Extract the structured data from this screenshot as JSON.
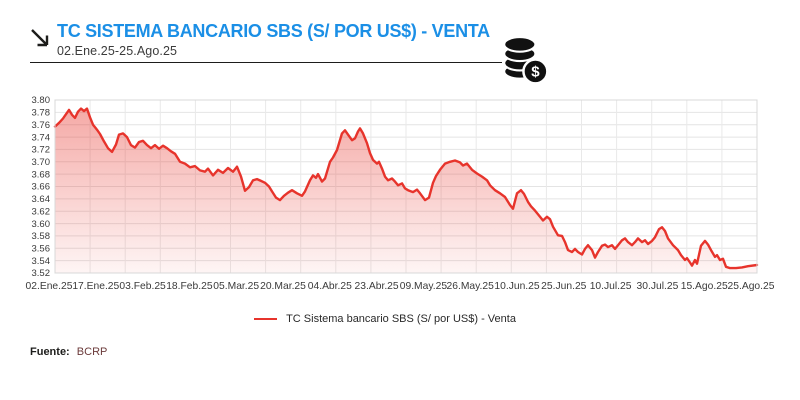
{
  "header": {
    "title": "TC SISTEMA BANCARIO SBS (S/ POR US$) - VENTA",
    "subtitle": "02.Ene.25-25.Ago.25",
    "title_color": "#1b8fe6"
  },
  "legend": {
    "label": "TC Sistema bancario SBS (S/ por US$) - Venta",
    "marker_color": "#e7342c"
  },
  "footer": {
    "source_label": "Fuente:",
    "source_value": "BCRP"
  },
  "icons": {
    "top_left": "trend-down-right-arrow-icon",
    "top_right": "money-coins-dollar-icon"
  },
  "chart_data": {
    "type": "area",
    "title": "TC SISTEMA BANCARIO SBS (S/ POR US$) - VENTA",
    "period": "02.Ene.25-25.Ago.25",
    "series_name": "TC Sistema bancario SBS (S/ por US$) - Venta",
    "xlabel": "",
    "ylabel": "",
    "ylim": [
      3.52,
      3.8
    ],
    "y_ticks": [
      3.8,
      3.78,
      3.76,
      3.74,
      3.72,
      3.7,
      3.68,
      3.66,
      3.64,
      3.62,
      3.6,
      3.58,
      3.56,
      3.54,
      3.52
    ],
    "x_tick_labels": [
      "02.Ene.25",
      "17.Ene.25",
      "03.Feb.25",
      "18.Feb.25",
      "05.Mar.25",
      "20.Mar.25",
      "04.Abr.25",
      "23.Abr.25",
      "09.May.25",
      "26.May.25",
      "10.Jun.25",
      "25.Jun.25",
      "10.Jul.25",
      "30.Jul.25",
      "15.Ago.25",
      "25.Ago.25"
    ],
    "grid": true,
    "x_grid_intervals": 20,
    "legend_position": "bottom-center",
    "line_color": "#e7342c",
    "fill_style": "vertical red gradient fading to white",
    "x_unit": "time-axis position (02.Ene.25 = 0, 25.Ago.25 = 702)",
    "points": [
      [
        55,
        3.757
      ],
      [
        59,
        3.763
      ],
      [
        63,
        3.77
      ],
      [
        66,
        3.777
      ],
      [
        69,
        3.784
      ],
      [
        72,
        3.776
      ],
      [
        75,
        3.771
      ],
      [
        78,
        3.781
      ],
      [
        81,
        3.786
      ],
      [
        84,
        3.782
      ],
      [
        87,
        3.786
      ],
      [
        90,
        3.772
      ],
      [
        93,
        3.76
      ],
      [
        97,
        3.752
      ],
      [
        100,
        3.745
      ],
      [
        104,
        3.733
      ],
      [
        108,
        3.722
      ],
      [
        112,
        3.716
      ],
      [
        116,
        3.728
      ],
      [
        119,
        3.744
      ],
      [
        123,
        3.746
      ],
      [
        127,
        3.74
      ],
      [
        131,
        3.727
      ],
      [
        135,
        3.723
      ],
      [
        139,
        3.732
      ],
      [
        143,
        3.734
      ],
      [
        147,
        3.727
      ],
      [
        151,
        3.722
      ],
      [
        155,
        3.727
      ],
      [
        159,
        3.721
      ],
      [
        163,
        3.726
      ],
      [
        167,
        3.722
      ],
      [
        171,
        3.717
      ],
      [
        175,
        3.713
      ],
      [
        180,
        3.7
      ],
      [
        185,
        3.697
      ],
      [
        190,
        3.691
      ],
      [
        195,
        3.693
      ],
      [
        200,
        3.686
      ],
      [
        205,
        3.684
      ],
      [
        208,
        3.689
      ],
      [
        213,
        3.678
      ],
      [
        218,
        3.687
      ],
      [
        223,
        3.682
      ],
      [
        228,
        3.69
      ],
      [
        233,
        3.684
      ],
      [
        237,
        3.692
      ],
      [
        241,
        3.676
      ],
      [
        245,
        3.653
      ],
      [
        249,
        3.659
      ],
      [
        253,
        3.67
      ],
      [
        257,
        3.672
      ],
      [
        261,
        3.669
      ],
      [
        265,
        3.666
      ],
      [
        269,
        3.66
      ],
      [
        272,
        3.652
      ],
      [
        276,
        3.642
      ],
      [
        280,
        3.638
      ],
      [
        284,
        3.645
      ],
      [
        288,
        3.65
      ],
      [
        292,
        3.654
      ],
      [
        297,
        3.649
      ],
      [
        302,
        3.645
      ],
      [
        305,
        3.652
      ],
      [
        310,
        3.67
      ],
      [
        313,
        3.678
      ],
      [
        316,
        3.674
      ],
      [
        318,
        3.68
      ],
      [
        322,
        3.668
      ],
      [
        325,
        3.673
      ],
      [
        330,
        3.7
      ],
      [
        333,
        3.707
      ],
      [
        337,
        3.719
      ],
      [
        342,
        3.746
      ],
      [
        345,
        3.751
      ],
      [
        348,
        3.744
      ],
      [
        352,
        3.735
      ],
      [
        355,
        3.738
      ],
      [
        358,
        3.749
      ],
      [
        360,
        3.754
      ],
      [
        363,
        3.746
      ],
      [
        367,
        3.73
      ],
      [
        370,
        3.714
      ],
      [
        373,
        3.703
      ],
      [
        377,
        3.697
      ],
      [
        379,
        3.7
      ],
      [
        382,
        3.689
      ],
      [
        385,
        3.676
      ],
      [
        388,
        3.67
      ],
      [
        392,
        3.673
      ],
      [
        395,
        3.668
      ],
      [
        398,
        3.662
      ],
      [
        402,
        3.665
      ],
      [
        405,
        3.657
      ],
      [
        408,
        3.654
      ],
      [
        413,
        3.651
      ],
      [
        417,
        3.655
      ],
      [
        420,
        3.649
      ],
      [
        425,
        3.638
      ],
      [
        429,
        3.642
      ],
      [
        433,
        3.666
      ],
      [
        436,
        3.677
      ],
      [
        440,
        3.687
      ],
      [
        445,
        3.697
      ],
      [
        450,
        3.7
      ],
      [
        455,
        3.702
      ],
      [
        460,
        3.699
      ],
      [
        463,
        3.694
      ],
      [
        467,
        3.697
      ],
      [
        472,
        3.687
      ],
      [
        477,
        3.681
      ],
      [
        482,
        3.676
      ],
      [
        487,
        3.67
      ],
      [
        490,
        3.662
      ],
      [
        495,
        3.654
      ],
      [
        500,
        3.649
      ],
      [
        505,
        3.643
      ],
      [
        510,
        3.63
      ],
      [
        513,
        3.624
      ],
      [
        517,
        3.649
      ],
      [
        521,
        3.654
      ],
      [
        524,
        3.648
      ],
      [
        528,
        3.635
      ],
      [
        531,
        3.628
      ],
      [
        535,
        3.621
      ],
      [
        540,
        3.611
      ],
      [
        543,
        3.605
      ],
      [
        547,
        3.611
      ],
      [
        550,
        3.607
      ],
      [
        553,
        3.595
      ],
      [
        558,
        3.581
      ],
      [
        562,
        3.58
      ],
      [
        565,
        3.57
      ],
      [
        568,
        3.557
      ],
      [
        572,
        3.554
      ],
      [
        575,
        3.559
      ],
      [
        578,
        3.554
      ],
      [
        582,
        3.55
      ],
      [
        585,
        3.559
      ],
      [
        588,
        3.565
      ],
      [
        592,
        3.557
      ],
      [
        595,
        3.545
      ],
      [
        598,
        3.554
      ],
      [
        602,
        3.564
      ],
      [
        605,
        3.566
      ],
      [
        608,
        3.562
      ],
      [
        612,
        3.565
      ],
      [
        615,
        3.559
      ],
      [
        618,
        3.565
      ],
      [
        622,
        3.573
      ],
      [
        625,
        3.576
      ],
      [
        628,
        3.57
      ],
      [
        632,
        3.565
      ],
      [
        635,
        3.57
      ],
      [
        638,
        3.576
      ],
      [
        642,
        3.57
      ],
      [
        645,
        3.573
      ],
      [
        648,
        3.567
      ],
      [
        652,
        3.572
      ],
      [
        655,
        3.578
      ],
      [
        659,
        3.591
      ],
      [
        662,
        3.594
      ],
      [
        665,
        3.588
      ],
      [
        668,
        3.576
      ],
      [
        673,
        3.565
      ],
      [
        678,
        3.557
      ],
      [
        681,
        3.549
      ],
      [
        685,
        3.541
      ],
      [
        687,
        3.544
      ],
      [
        690,
        3.537
      ],
      [
        692,
        3.532
      ],
      [
        695,
        3.541
      ],
      [
        697,
        3.535
      ],
      [
        701,
        3.564
      ],
      [
        705,
        3.572
      ],
      [
        708,
        3.566
      ],
      [
        711,
        3.557
      ],
      [
        715,
        3.546
      ],
      [
        717,
        3.549
      ],
      [
        720,
        3.541
      ],
      [
        723,
        3.543
      ],
      [
        726,
        3.53
      ],
      [
        730,
        3.528
      ],
      [
        736,
        3.528
      ],
      [
        742,
        3.529
      ],
      [
        748,
        3.531
      ],
      [
        757,
        3.533
      ]
    ]
  }
}
